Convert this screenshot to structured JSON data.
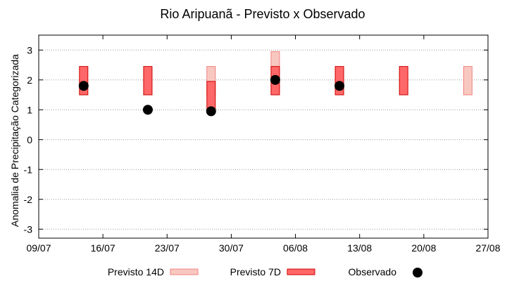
{
  "chart_data": {
    "type": "bar",
    "title": "Rio Aripuanã - Previsto x Observado",
    "xlabel": "",
    "ylabel": "Anomalia de Precipitação Categorizada",
    "x_ticks": [
      "09/07",
      "16/07",
      "23/07",
      "30/07",
      "06/08",
      "13/08",
      "20/08",
      "27/08"
    ],
    "y_ticks": [
      "-3",
      "-2",
      "-1",
      "0",
      "1",
      "2",
      "3"
    ],
    "xlim": [
      0,
      49
    ],
    "ylim": [
      -3.3,
      3.5
    ],
    "grid": "horizontal dotted",
    "legend_position": "bottom",
    "legend": [
      "Previsto 14D",
      "Previsto 7D",
      "Observado"
    ],
    "colors": {
      "p14_fill": "#f8c8c0",
      "p14_stroke": "#f08080",
      "p7_fill": "#ff6868",
      "p7_stroke": "#cc0000",
      "observed": "#000000",
      "grid": "#999999"
    },
    "series": [
      {
        "name": "Previsto 14D",
        "type": "range",
        "points": [
          {
            "x": 18.8,
            "low": 1.5,
            "high": 2.45
          },
          {
            "x": 25.8,
            "low": 1.5,
            "high": 2.95
          },
          {
            "x": 46.8,
            "low": 1.5,
            "high": 2.45
          }
        ]
      },
      {
        "name": "Previsto 7D",
        "type": "range",
        "points": [
          {
            "x": 4.9,
            "low": 1.5,
            "high": 2.45
          },
          {
            "x": 11.9,
            "low": 1.5,
            "high": 2.45
          },
          {
            "x": 18.8,
            "low": 0.95,
            "high": 1.95
          },
          {
            "x": 25.8,
            "low": 1.5,
            "high": 2.45
          },
          {
            "x": 32.8,
            "low": 1.5,
            "high": 2.45
          },
          {
            "x": 39.8,
            "low": 1.5,
            "high": 2.45
          }
        ]
      },
      {
        "name": "Observado",
        "type": "scatter",
        "points": [
          {
            "x": 4.9,
            "y": 1.8
          },
          {
            "x": 11.9,
            "y": 1.0
          },
          {
            "x": 18.8,
            "y": 0.95
          },
          {
            "x": 25.8,
            "y": 2.0
          },
          {
            "x": 32.8,
            "y": 1.8
          }
        ]
      }
    ]
  }
}
